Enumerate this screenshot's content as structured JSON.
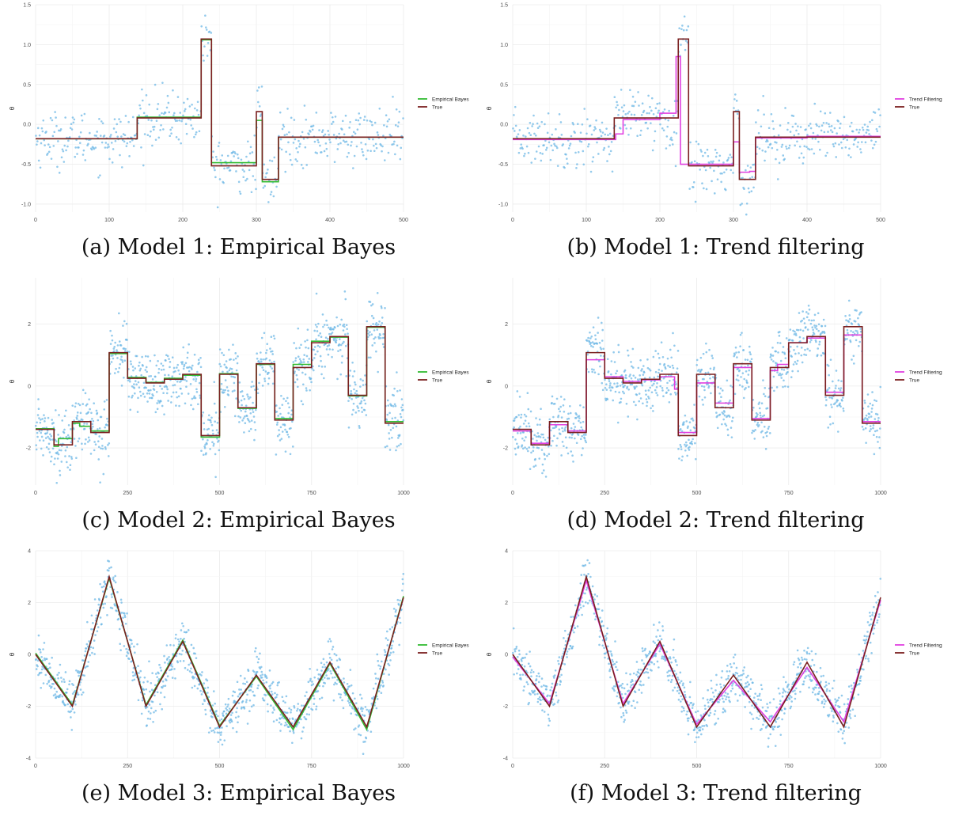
{
  "panels": [
    {
      "caption": "(a) Model 1: Empirical Bayes",
      "ylabel": "θ",
      "legend": [
        {
          "label": "Empirical Bayes",
          "color": "#33bb33"
        },
        {
          "label": "True",
          "color": "#7a1f1f"
        }
      ],
      "xticks": [
        0,
        100,
        200,
        300,
        400,
        500
      ],
      "yticks": [
        -1.0,
        -0.5,
        0.0,
        0.5,
        1.0,
        1.5
      ],
      "ytick_labels": [
        "-1.0",
        "-0.5",
        "0.0",
        "0.5",
        "1.0",
        "1.5"
      ]
    },
    {
      "caption": "(b) Model 1: Trend filtering",
      "ylabel": "θ",
      "legend": [
        {
          "label": "Trend Filtering",
          "color": "#e040e0"
        },
        {
          "label": "True",
          "color": "#7a1f1f"
        }
      ],
      "xticks": [
        0,
        100,
        200,
        300,
        400,
        500
      ],
      "yticks": [
        -1.0,
        -0.5,
        0.0,
        0.5,
        1.0,
        1.5
      ],
      "ytick_labels": [
        "-1.0",
        "-0.5",
        "0.0",
        "0.5",
        "1.0",
        "1.5"
      ]
    },
    {
      "caption": "(c) Model 2: Empirical Bayes",
      "ylabel": "θ",
      "legend": [
        {
          "label": "Empirical Bayes",
          "color": "#33bb33"
        },
        {
          "label": "True",
          "color": "#7a1f1f"
        }
      ],
      "xticks": [
        0,
        250,
        500,
        750,
        1000
      ],
      "yticks": [
        -2,
        0,
        2
      ],
      "ytick_labels": [
        "-2",
        "0",
        "2"
      ]
    },
    {
      "caption": "(d) Model 2: Trend filtering",
      "ylabel": "θ",
      "legend": [
        {
          "label": "Trend Filtering",
          "color": "#e040e0"
        },
        {
          "label": "True",
          "color": "#7a1f1f"
        }
      ],
      "xticks": [
        0,
        250,
        500,
        750,
        1000
      ],
      "yticks": [
        -2,
        0,
        2
      ],
      "ytick_labels": [
        "-2",
        "0",
        "2"
      ]
    },
    {
      "caption": "(e) Model 3: Empirical Bayes",
      "ylabel": "θ",
      "legend": [
        {
          "label": "Empirical Bayes",
          "color": "#33bb33"
        },
        {
          "label": "True",
          "color": "#7a1f1f"
        }
      ],
      "xticks": [
        0,
        250,
        500,
        750,
        1000
      ],
      "yticks": [
        -4,
        -2,
        0,
        2,
        4
      ],
      "ytick_labels": [
        "-4",
        "-2",
        "0",
        "2",
        "4"
      ]
    },
    {
      "caption": "(f) Model 3: Trend filtering",
      "ylabel": "θ",
      "legend": [
        {
          "label": "Trend Filtering",
          "color": "#e040e0"
        },
        {
          "label": "True",
          "color": "#7a1f1f"
        }
      ],
      "xticks": [
        0,
        250,
        500,
        750,
        1000
      ],
      "yticks": [
        -4,
        -2,
        0,
        2,
        4
      ],
      "ytick_labels": [
        "-4",
        "-2",
        "0",
        "2",
        "4"
      ]
    }
  ],
  "chart_data": [
    {
      "type": "line",
      "ylabel": "θ",
      "xlim": [
        0,
        500
      ],
      "ylim": [
        -1.1,
        1.5
      ],
      "grid": true,
      "legend_position": "right",
      "point_color": "#6fb8e6",
      "series": [
        {
          "name": "True",
          "color": "#7a1f1f",
          "x": [
            0,
            138,
            138,
            225,
            225,
            239,
            239,
            300,
            300,
            308,
            308,
            330,
            330,
            500
          ],
          "y": [
            -0.18,
            -0.18,
            0.08,
            0.08,
            1.07,
            1.07,
            -0.52,
            -0.52,
            0.16,
            0.16,
            -0.69,
            -0.69,
            -0.16,
            -0.16
          ]
        },
        {
          "name": "Empirical Bayes",
          "color": "#33bb33",
          "x": [
            0,
            138,
            138,
            225,
            225,
            239,
            239,
            300,
            300,
            308,
            308,
            330,
            330,
            500
          ],
          "y": [
            -0.18,
            -0.18,
            0.09,
            0.09,
            1.06,
            1.06,
            -0.48,
            -0.48,
            0.05,
            0.05,
            -0.72,
            -0.72,
            -0.16,
            -0.16
          ]
        }
      ],
      "noise_sd": 0.17,
      "n_points": 500
    },
    {
      "type": "line",
      "ylabel": "θ",
      "xlim": [
        0,
        500
      ],
      "ylim": [
        -1.1,
        1.5
      ],
      "grid": true,
      "legend_position": "right",
      "point_color": "#6fb8e6",
      "series": [
        {
          "name": "True",
          "color": "#7a1f1f",
          "x": [
            0,
            138,
            138,
            225,
            225,
            239,
            239,
            300,
            300,
            308,
            308,
            330,
            330,
            500
          ],
          "y": [
            -0.18,
            -0.18,
            0.08,
            0.08,
            1.07,
            1.07,
            -0.52,
            -0.52,
            0.16,
            0.16,
            -0.69,
            -0.69,
            -0.16,
            -0.16
          ]
        },
        {
          "name": "Trend Filtering",
          "color": "#e040e0",
          "x": [
            0,
            140,
            140,
            150,
            150,
            200,
            200,
            222,
            222,
            228,
            228,
            240,
            240,
            300,
            300,
            308,
            308,
            322,
            322,
            330,
            330,
            400,
            400,
            500
          ],
          "y": [
            -0.19,
            -0.19,
            -0.12,
            -0.12,
            0.06,
            0.06,
            0.14,
            0.14,
            0.85,
            0.85,
            -0.5,
            -0.5,
            -0.5,
            -0.5,
            -0.22,
            -0.22,
            -0.6,
            -0.6,
            -0.59,
            -0.59,
            -0.17,
            -0.17,
            -0.15,
            -0.15
          ]
        }
      ],
      "noise_sd": 0.17,
      "n_points": 500
    },
    {
      "type": "line",
      "ylabel": "θ",
      "xlim": [
        0,
        1000
      ],
      "ylim": [
        -3.2,
        3.5
      ],
      "grid": true,
      "legend_position": "right",
      "point_color": "#6fb8e6",
      "series": [
        {
          "name": "True",
          "color": "#7a1f1f",
          "x": [
            0,
            50,
            50,
            100,
            100,
            150,
            150,
            200,
            200,
            250,
            250,
            300,
            300,
            350,
            350,
            400,
            400,
            450,
            450,
            500,
            500,
            550,
            550,
            600,
            600,
            650,
            650,
            700,
            700,
            750,
            750,
            800,
            800,
            850,
            850,
            900,
            900,
            950,
            950,
            1000
          ],
          "y": [
            -1.4,
            -1.4,
            -1.9,
            -1.9,
            -1.15,
            -1.15,
            -1.5,
            -1.5,
            1.08,
            1.08,
            0.25,
            0.25,
            0.1,
            0.1,
            0.22,
            0.22,
            0.38,
            0.38,
            -1.6,
            -1.6,
            0.38,
            0.38,
            -0.7,
            -0.7,
            0.72,
            0.72,
            -1.1,
            -1.1,
            0.6,
            0.6,
            1.4,
            1.4,
            1.6,
            1.6,
            -0.3,
            -0.3,
            1.92,
            1.92,
            -1.2,
            -1.2
          ]
        },
        {
          "name": "Empirical Bayes",
          "color": "#33bb33",
          "x": [
            0,
            50,
            50,
            62,
            62,
            100,
            100,
            120,
            120,
            150,
            150,
            200,
            200,
            250,
            250,
            300,
            300,
            350,
            350,
            400,
            400,
            450,
            450,
            500,
            500,
            550,
            550,
            600,
            600,
            650,
            650,
            700,
            700,
            750,
            750,
            800,
            800,
            850,
            850,
            900,
            900,
            950,
            950,
            1000
          ],
          "y": [
            -1.38,
            -1.38,
            -1.95,
            -1.95,
            -1.7,
            -1.7,
            -1.2,
            -1.2,
            -1.3,
            -1.3,
            -1.45,
            -1.45,
            1.05,
            1.05,
            0.28,
            0.28,
            0.12,
            0.12,
            0.25,
            0.25,
            0.35,
            0.35,
            -1.65,
            -1.65,
            0.4,
            0.4,
            -0.72,
            -0.72,
            0.7,
            0.7,
            -1.05,
            -1.05,
            0.7,
            0.7,
            1.45,
            1.45,
            1.58,
            1.58,
            -0.32,
            -0.32,
            1.9,
            1.9,
            -1.15,
            -1.15
          ]
        }
      ],
      "noise_sd": 0.5,
      "n_points": 1000
    },
    {
      "type": "line",
      "ylabel": "θ",
      "xlim": [
        0,
        1000
      ],
      "ylim": [
        -3.2,
        3.5
      ],
      "grid": true,
      "legend_position": "right",
      "point_color": "#6fb8e6",
      "series": [
        {
          "name": "True",
          "color": "#7a1f1f",
          "x": [
            0,
            50,
            50,
            100,
            100,
            150,
            150,
            200,
            200,
            250,
            250,
            300,
            300,
            350,
            350,
            400,
            400,
            450,
            450,
            500,
            500,
            550,
            550,
            600,
            600,
            650,
            650,
            700,
            700,
            750,
            750,
            800,
            800,
            850,
            850,
            900,
            900,
            950,
            950,
            1000
          ],
          "y": [
            -1.4,
            -1.4,
            -1.9,
            -1.9,
            -1.15,
            -1.15,
            -1.5,
            -1.5,
            1.08,
            1.08,
            0.25,
            0.25,
            0.1,
            0.1,
            0.22,
            0.22,
            0.38,
            0.38,
            -1.6,
            -1.6,
            0.38,
            0.38,
            -0.7,
            -0.7,
            0.72,
            0.72,
            -1.1,
            -1.1,
            0.6,
            0.6,
            1.4,
            1.4,
            1.6,
            1.6,
            -0.3,
            -0.3,
            1.92,
            1.92,
            -1.2,
            -1.2
          ]
        },
        {
          "name": "Trend Filtering",
          "color": "#e040e0",
          "x": [
            0,
            50,
            50,
            100,
            100,
            150,
            150,
            200,
            200,
            250,
            250,
            300,
            300,
            350,
            350,
            400,
            400,
            440,
            440,
            450,
            450,
            500,
            500,
            550,
            550,
            600,
            600,
            650,
            650,
            700,
            700,
            720,
            720,
            750,
            750,
            800,
            800,
            850,
            850,
            900,
            900,
            950,
            950,
            1000
          ],
          "y": [
            -1.45,
            -1.45,
            -1.85,
            -1.85,
            -1.25,
            -1.25,
            -1.45,
            -1.45,
            0.85,
            0.85,
            0.3,
            0.3,
            0.15,
            0.15,
            0.2,
            0.2,
            0.3,
            0.3,
            -0.1,
            -0.1,
            -1.5,
            -1.5,
            0.1,
            0.1,
            -0.55,
            -0.55,
            0.6,
            0.6,
            -1.05,
            -1.05,
            0.5,
            0.5,
            0.7,
            0.7,
            1.4,
            1.4,
            1.55,
            1.55,
            -0.2,
            -0.2,
            1.65,
            1.65,
            -1.15,
            -1.15
          ]
        }
      ],
      "noise_sd": 0.5,
      "n_points": 1000
    },
    {
      "type": "line",
      "ylabel": "θ",
      "xlim": [
        0,
        1000
      ],
      "ylim": [
        -4,
        4
      ],
      "grid": true,
      "legend_position": "right",
      "point_color": "#6fb8e6",
      "series": [
        {
          "name": "True",
          "color": "#7a1f1f",
          "x": [
            0,
            100,
            200,
            300,
            400,
            500,
            600,
            700,
            800,
            900,
            1000
          ],
          "y": [
            0,
            -2,
            3,
            -2,
            0.5,
            -2.8,
            -0.8,
            -2.8,
            -0.3,
            -2.8,
            2.2
          ]
        },
        {
          "name": "Empirical Bayes",
          "color": "#33bb33",
          "x": [
            0,
            100,
            200,
            300,
            400,
            500,
            600,
            700,
            800,
            900,
            1000
          ],
          "y": [
            0.05,
            -1.95,
            2.95,
            -1.95,
            0.55,
            -2.75,
            -0.85,
            -2.9,
            -0.35,
            -2.9,
            2.25
          ]
        }
      ],
      "noise_sd": 0.45,
      "n_points": 1000
    },
    {
      "type": "line",
      "ylabel": "θ",
      "xlim": [
        0,
        1000
      ],
      "ylim": [
        -4,
        4
      ],
      "grid": true,
      "legend_position": "right",
      "point_color": "#6fb8e6",
      "series": [
        {
          "name": "True",
          "color": "#7a1f1f",
          "x": [
            0,
            100,
            200,
            300,
            400,
            500,
            600,
            700,
            800,
            900,
            1000
          ],
          "y": [
            0,
            -2,
            3,
            -2,
            0.5,
            -2.8,
            -0.8,
            -2.8,
            -0.3,
            -2.8,
            2.2
          ]
        },
        {
          "name": "Trend Filtering",
          "color": "#e040e0",
          "x": [
            0,
            100,
            200,
            300,
            400,
            500,
            600,
            700,
            800,
            900,
            1000
          ],
          "y": [
            -0.1,
            -1.9,
            2.85,
            -1.9,
            0.4,
            -2.7,
            -1.0,
            -2.6,
            -0.5,
            -2.6,
            2.1
          ]
        }
      ],
      "noise_sd": 0.45,
      "n_points": 1000
    }
  ]
}
